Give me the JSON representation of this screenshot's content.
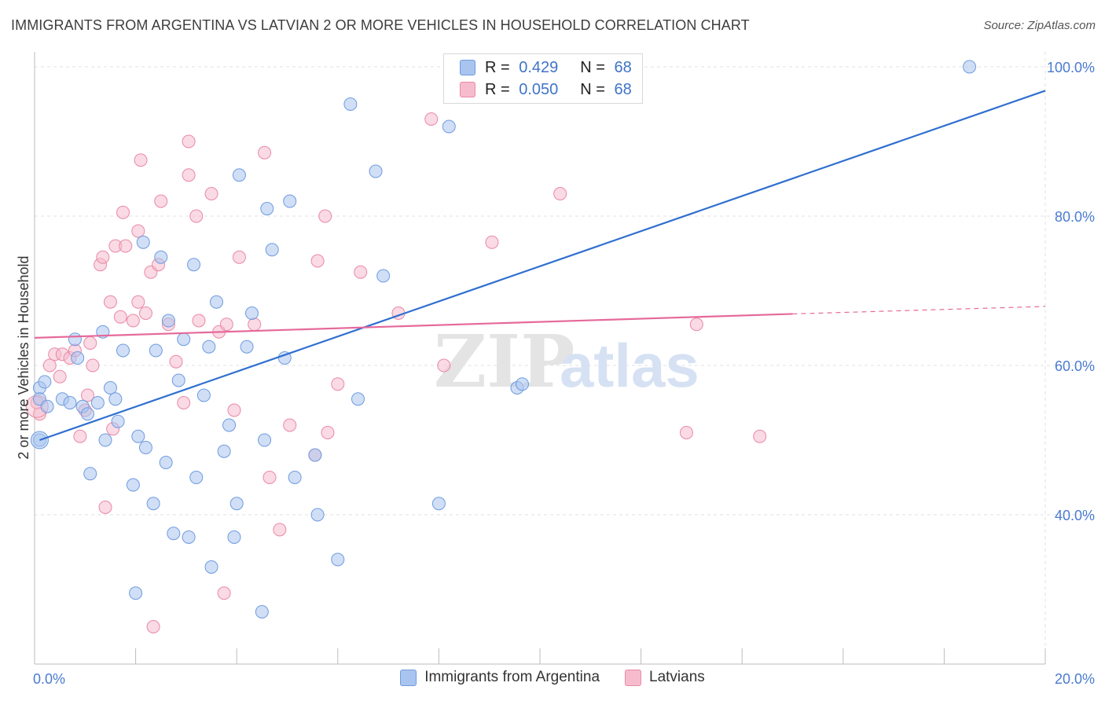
{
  "header": {
    "title": "IMMIGRANTS FROM ARGENTINA VS LATVIAN 2 OR MORE VEHICLES IN HOUSEHOLD CORRELATION CHART",
    "source": "Source: ZipAtlas.com"
  },
  "watermark": {
    "zip": "ZIP",
    "atlas": "atlas"
  },
  "legend": {
    "rows": [
      {
        "r_label": "R =",
        "r_value": "0.429",
        "n_label": "N =",
        "n_value": "68",
        "color": "#a9c4ee",
        "border": "#6f9be0"
      },
      {
        "r_label": "R =",
        "r_value": "0.050",
        "n_label": "N =",
        "n_value": "68",
        "color": "#f6bccd",
        "border": "#e98aa6"
      }
    ]
  },
  "bottom_legend": {
    "items": [
      {
        "label": "Immigrants from Argentina",
        "color": "#a9c4ee",
        "border": "#6f9be0"
      },
      {
        "label": "Latvians",
        "color": "#f6bccd",
        "border": "#e98aa6"
      }
    ]
  },
  "chart_data": {
    "type": "scatter",
    "title": "IMMIGRANTS FROM ARGENTINA VS LATVIAN 2 OR MORE VEHICLES IN HOUSEHOLD CORRELATION CHART",
    "xlabel": "",
    "ylabel": "2 or more Vehicles in Household",
    "xlim": [
      0,
      20
    ],
    "ylim": [
      20,
      102
    ],
    "x_tick_labels": [
      {
        "value": 0,
        "label": "0.0%"
      },
      {
        "value": 20,
        "label": "20.0%"
      }
    ],
    "y_tick_labels": [
      {
        "value": 100,
        "label": "100.0%"
      },
      {
        "value": 80,
        "label": "80.0%"
      },
      {
        "value": 60,
        "label": "60.0%"
      },
      {
        "value": 40,
        "label": "40.0%"
      }
    ],
    "grid": true,
    "legend_position": "top-center",
    "colors": {
      "argentina_fill": "#a9c4ee",
      "argentina_stroke": "#6f9be0",
      "argentina_line": "#2f6fcf",
      "latvian_fill": "#f6bccd",
      "latvian_stroke": "#e98aa6",
      "latvian_line": "#e5699a"
    },
    "series": [
      {
        "name": "Immigrants from Argentina",
        "trend": {
          "x": [
            0.1,
            20
          ],
          "y": [
            50.0,
            96.8
          ]
        },
        "points": [
          [
            0.1,
            57.0
          ],
          [
            0.1,
            55.5
          ],
          [
            0.1,
            50.0
          ],
          [
            0.2,
            57.8
          ],
          [
            0.25,
            54.5
          ],
          [
            0.55,
            55.5
          ],
          [
            0.7,
            55.0
          ],
          [
            0.8,
            63.5
          ],
          [
            0.85,
            61.0
          ],
          [
            0.95,
            54.5
          ],
          [
            1.05,
            53.5
          ],
          [
            1.1,
            45.5
          ],
          [
            1.25,
            55.0
          ],
          [
            1.35,
            64.5
          ],
          [
            1.4,
            50.0
          ],
          [
            1.5,
            57.0
          ],
          [
            1.6,
            55.5
          ],
          [
            1.65,
            52.5
          ],
          [
            1.75,
            62.0
          ],
          [
            1.95,
            44.0
          ],
          [
            2.0,
            29.5
          ],
          [
            2.05,
            50.5
          ],
          [
            2.15,
            76.5
          ],
          [
            2.2,
            49.0
          ],
          [
            2.35,
            41.5
          ],
          [
            2.4,
            62.0
          ],
          [
            2.5,
            74.5
          ],
          [
            2.6,
            47.0
          ],
          [
            2.65,
            66.0
          ],
          [
            2.75,
            37.5
          ],
          [
            2.85,
            58.0
          ],
          [
            2.95,
            63.5
          ],
          [
            3.05,
            37.0
          ],
          [
            3.15,
            73.5
          ],
          [
            3.2,
            45.0
          ],
          [
            3.35,
            56.0
          ],
          [
            3.45,
            62.5
          ],
          [
            3.5,
            33.0
          ],
          [
            3.6,
            68.5
          ],
          [
            3.75,
            48.5
          ],
          [
            3.85,
            52.0
          ],
          [
            3.95,
            37.0
          ],
          [
            4.0,
            41.5
          ],
          [
            4.05,
            85.5
          ],
          [
            4.2,
            62.5
          ],
          [
            4.3,
            67.0
          ],
          [
            4.5,
            27.0
          ],
          [
            4.55,
            50.0
          ],
          [
            4.6,
            81.0
          ],
          [
            4.7,
            75.5
          ],
          [
            4.95,
            61.0
          ],
          [
            5.05,
            82.0
          ],
          [
            5.15,
            45.0
          ],
          [
            5.55,
            48.0
          ],
          [
            5.6,
            40.0
          ],
          [
            6.0,
            34.0
          ],
          [
            6.25,
            95.0
          ],
          [
            6.4,
            55.5
          ],
          [
            6.75,
            86.0
          ],
          [
            6.9,
            72.0
          ],
          [
            8.0,
            41.5
          ],
          [
            8.2,
            92.0
          ],
          [
            9.55,
            57.0
          ],
          [
            9.65,
            57.5
          ],
          [
            18.5,
            100.0
          ]
        ]
      },
      {
        "name": "Latvians",
        "trend": {
          "x": [
            0,
            15.0
          ],
          "y": [
            63.7,
            66.9
          ],
          "dashed_extension": {
            "x": [
              15.0,
              20
            ],
            "y": [
              66.9,
              67.9
            ]
          }
        },
        "points": [
          [
            0.05,
            55.0
          ],
          [
            0.1,
            53.5
          ],
          [
            0.3,
            60.0
          ],
          [
            0.4,
            61.5
          ],
          [
            0.5,
            58.5
          ],
          [
            0.55,
            61.5
          ],
          [
            0.7,
            61.0
          ],
          [
            0.8,
            62.0
          ],
          [
            0.9,
            50.5
          ],
          [
            1.0,
            54.0
          ],
          [
            1.05,
            56.0
          ],
          [
            1.1,
            63.0
          ],
          [
            1.15,
            60.0
          ],
          [
            1.3,
            73.5
          ],
          [
            1.35,
            74.5
          ],
          [
            1.4,
            41.0
          ],
          [
            1.5,
            68.5
          ],
          [
            1.55,
            51.5
          ],
          [
            1.6,
            76.0
          ],
          [
            1.7,
            66.5
          ],
          [
            1.75,
            80.5
          ],
          [
            1.8,
            76.0
          ],
          [
            1.95,
            66.0
          ],
          [
            2.05,
            68.5
          ],
          [
            2.05,
            78.0
          ],
          [
            2.1,
            87.5
          ],
          [
            2.2,
            67.0
          ],
          [
            2.3,
            72.5
          ],
          [
            2.35,
            25.0
          ],
          [
            2.45,
            73.5
          ],
          [
            2.5,
            82.0
          ],
          [
            2.65,
            65.5
          ],
          [
            2.8,
            60.5
          ],
          [
            2.95,
            55.0
          ],
          [
            3.05,
            90.0
          ],
          [
            3.05,
            85.5
          ],
          [
            3.2,
            80.0
          ],
          [
            3.25,
            66.0
          ],
          [
            3.5,
            83.0
          ],
          [
            3.65,
            64.5
          ],
          [
            3.75,
            29.5
          ],
          [
            3.8,
            65.5
          ],
          [
            3.95,
            54.0
          ],
          [
            4.05,
            74.5
          ],
          [
            4.35,
            65.5
          ],
          [
            4.55,
            88.5
          ],
          [
            4.65,
            45.0
          ],
          [
            4.85,
            38.0
          ],
          [
            5.05,
            52.0
          ],
          [
            5.55,
            48.0
          ],
          [
            5.6,
            74.0
          ],
          [
            5.75,
            80.0
          ],
          [
            5.8,
            51.0
          ],
          [
            6.0,
            57.5
          ],
          [
            6.45,
            72.5
          ],
          [
            7.2,
            67.0
          ],
          [
            7.85,
            93.0
          ],
          [
            8.1,
            60.0
          ],
          [
            9.05,
            76.5
          ],
          [
            10.4,
            83.0
          ],
          [
            12.9,
            51.0
          ],
          [
            13.1,
            65.5
          ],
          [
            14.35,
            50.5
          ]
        ]
      }
    ]
  }
}
